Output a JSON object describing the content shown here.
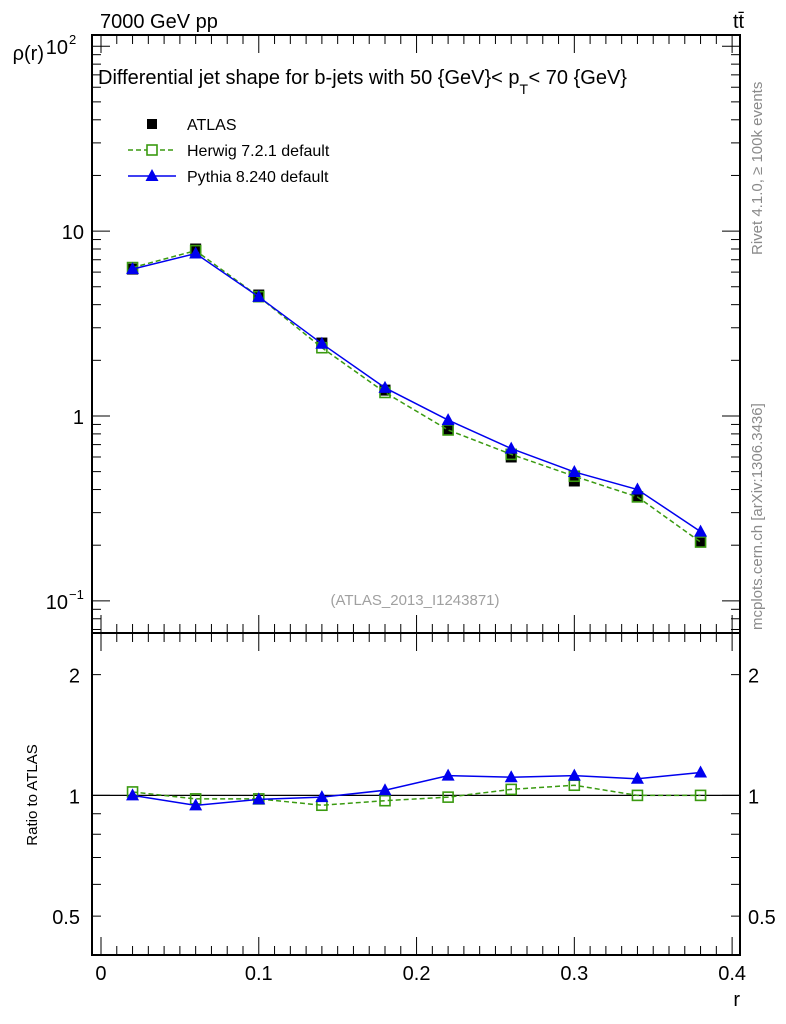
{
  "header": {
    "left": "7000 GeV pp",
    "right": "tt̄"
  },
  "side_labels": {
    "rivet": "Rivet 4.1.0, ≥ 100k events",
    "mcplots": "mcplots.cern.ch [arXiv:1306.3436]"
  },
  "chart_data": [
    {
      "type": "line",
      "title": "Differential jet shape for b-jets with 50 {GeV}< p",
      "title_sub": "T",
      "title_tail": " < 70 {GeV}",
      "watermark": "(ATLAS_2013_I1243871)",
      "xlabel": "",
      "ylabel": "ρ(r)",
      "yscale": "log",
      "ylim": [
        0.067,
        115
      ],
      "xlim": [
        -0.0057,
        0.405
      ],
      "ytick_labels": [
        {
          "v": 100,
          "base": "10",
          "exp": "2"
        },
        {
          "v": 10,
          "label": "10"
        },
        {
          "v": 1,
          "label": "1"
        },
        {
          "v": 0.1,
          "base": "10",
          "exp": "−1"
        }
      ],
      "legend_position": "top-left",
      "x": [
        0.02,
        0.06,
        0.1,
        0.14,
        0.18,
        0.22,
        0.26,
        0.3,
        0.34,
        0.38
      ],
      "series": [
        {
          "name": "ATLAS",
          "color": "#000000",
          "marker": "filled-square",
          "line": "none",
          "values": [
            6.23,
            8.0,
            4.51,
            2.48,
            1.38,
            0.85,
            0.6,
            0.445,
            0.365,
            0.208
          ]
        },
        {
          "name": "Herwig 7.2.1 default",
          "color": "#3a9a10",
          "marker": "open-square",
          "line": "dashed",
          "values": [
            6.35,
            7.84,
            4.42,
            2.34,
            1.34,
            0.84,
            0.62,
            0.472,
            0.365,
            0.208
          ]
        },
        {
          "name": "Pythia 8.240 default",
          "color": "#0000ee",
          "marker": "filled-triangle",
          "line": "solid",
          "values": [
            6.23,
            7.56,
            4.41,
            2.46,
            1.42,
            0.95,
            0.666,
            0.498,
            0.4,
            0.237
          ]
        }
      ]
    },
    {
      "type": "line",
      "xlabel": "r",
      "ylabel": "Ratio to ATLAS",
      "yscale": "log",
      "ylim": [
        0.4,
        2.54
      ],
      "xlim": [
        -0.0057,
        0.405
      ],
      "xtick_labels": [
        "0",
        "0.1",
        "0.2",
        "0.3",
        "0.4"
      ],
      "xticks": [
        0,
        0.1,
        0.2,
        0.3,
        0.4
      ],
      "ytick_labels": [
        "2",
        "1",
        "0.5"
      ],
      "yticks": [
        2,
        1,
        0.5
      ],
      "x": [
        0.02,
        0.06,
        0.1,
        0.14,
        0.18,
        0.22,
        0.26,
        0.3,
        0.34,
        0.38
      ],
      "series": [
        {
          "name": "Herwig 7.2.1 default",
          "color": "#3a9a10",
          "marker": "open-square",
          "line": "dashed",
          "values": [
            1.02,
            0.98,
            0.98,
            0.945,
            0.97,
            0.99,
            1.035,
            1.06,
            1.0,
            1.0
          ]
        },
        {
          "name": "Pythia 8.240 default",
          "color": "#0000ee",
          "marker": "filled-triangle",
          "line": "solid",
          "values": [
            1.0,
            0.944,
            0.977,
            0.99,
            1.03,
            1.12,
            1.11,
            1.12,
            1.1,
            1.14
          ]
        }
      ]
    }
  ]
}
